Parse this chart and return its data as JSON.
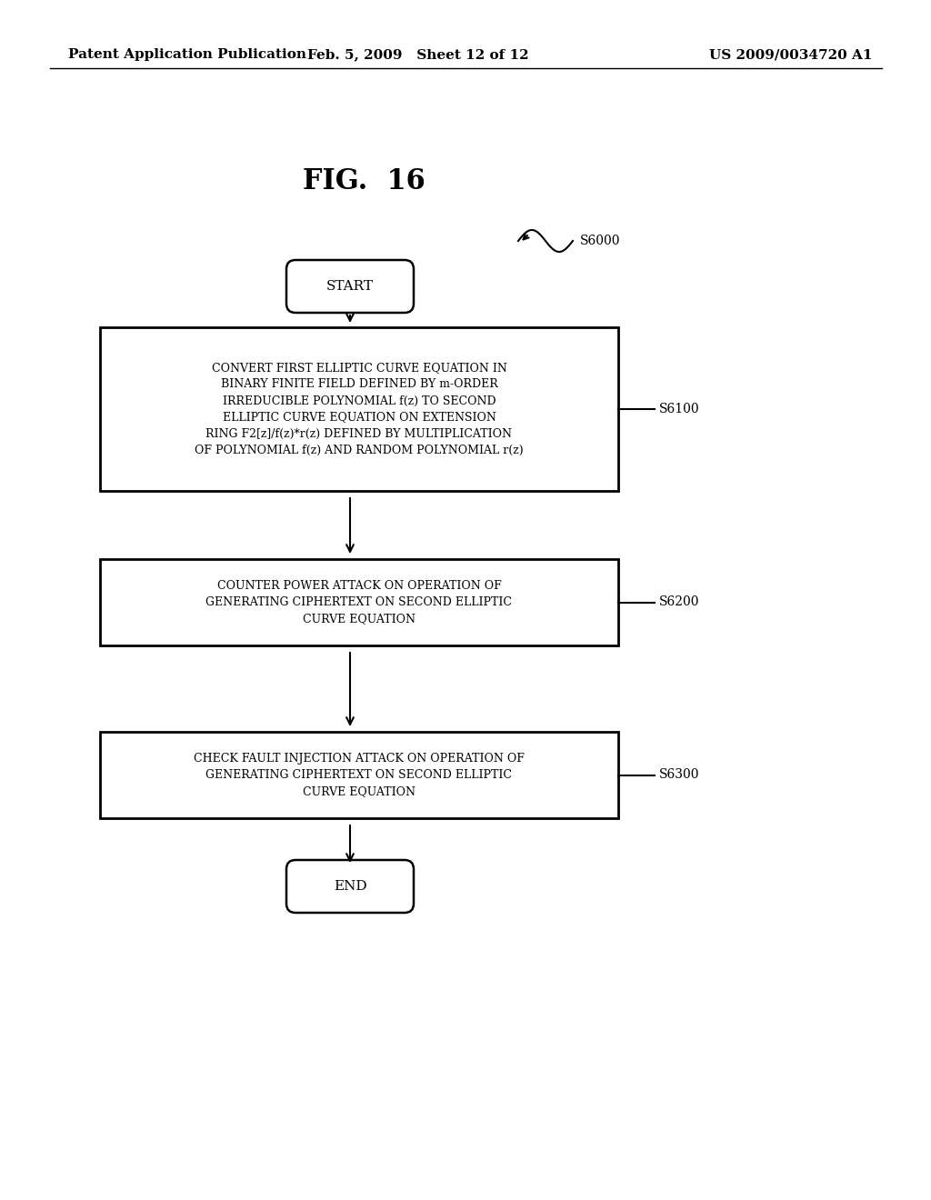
{
  "background_color": "#ffffff",
  "header_left": "Patent Application Publication",
  "header_mid": "Feb. 5, 2009   Sheet 12 of 12",
  "header_right": "US 2009/0034720 A1",
  "fig_title": "FIG.  16",
  "flow_label": "S6000",
  "start_label": "START",
  "end_label": "END",
  "box1_text": "CONVERT FIRST ELLIPTIC CURVE EQUATION IN\nBINARY FINITE FIELD DEFINED BY m-ORDER\nIRREDUCIBLE POLYNOMIAL f(z) TO SECOND\nELLIPTIC CURVE EQUATION ON EXTENSION\nRING F2[z]/f(z)*r(z) DEFINED BY MULTIPLICATION\nOF POLYNOMIAL f(z) AND RANDOM POLYNOMIAL r(z)",
  "box1_label": "S6100",
  "box2_text": "COUNTER POWER ATTACK ON OPERATION OF\nGENERATING CIPHERTEXT ON SECOND ELLIPTIC\nCURVE EQUATION",
  "box2_label": "S6200",
  "box3_text": "CHECK FAULT INJECTION ATTACK ON OPERATION OF\nGENERATING CIPHERTEXT ON SECOND ELLIPTIC\nCURVE EQUATION",
  "box3_label": "S6300",
  "header_fontsize": 11,
  "title_fontsize": 22,
  "text_fontsize": 9,
  "label_fontsize": 10,
  "terminal_fontsize": 11
}
